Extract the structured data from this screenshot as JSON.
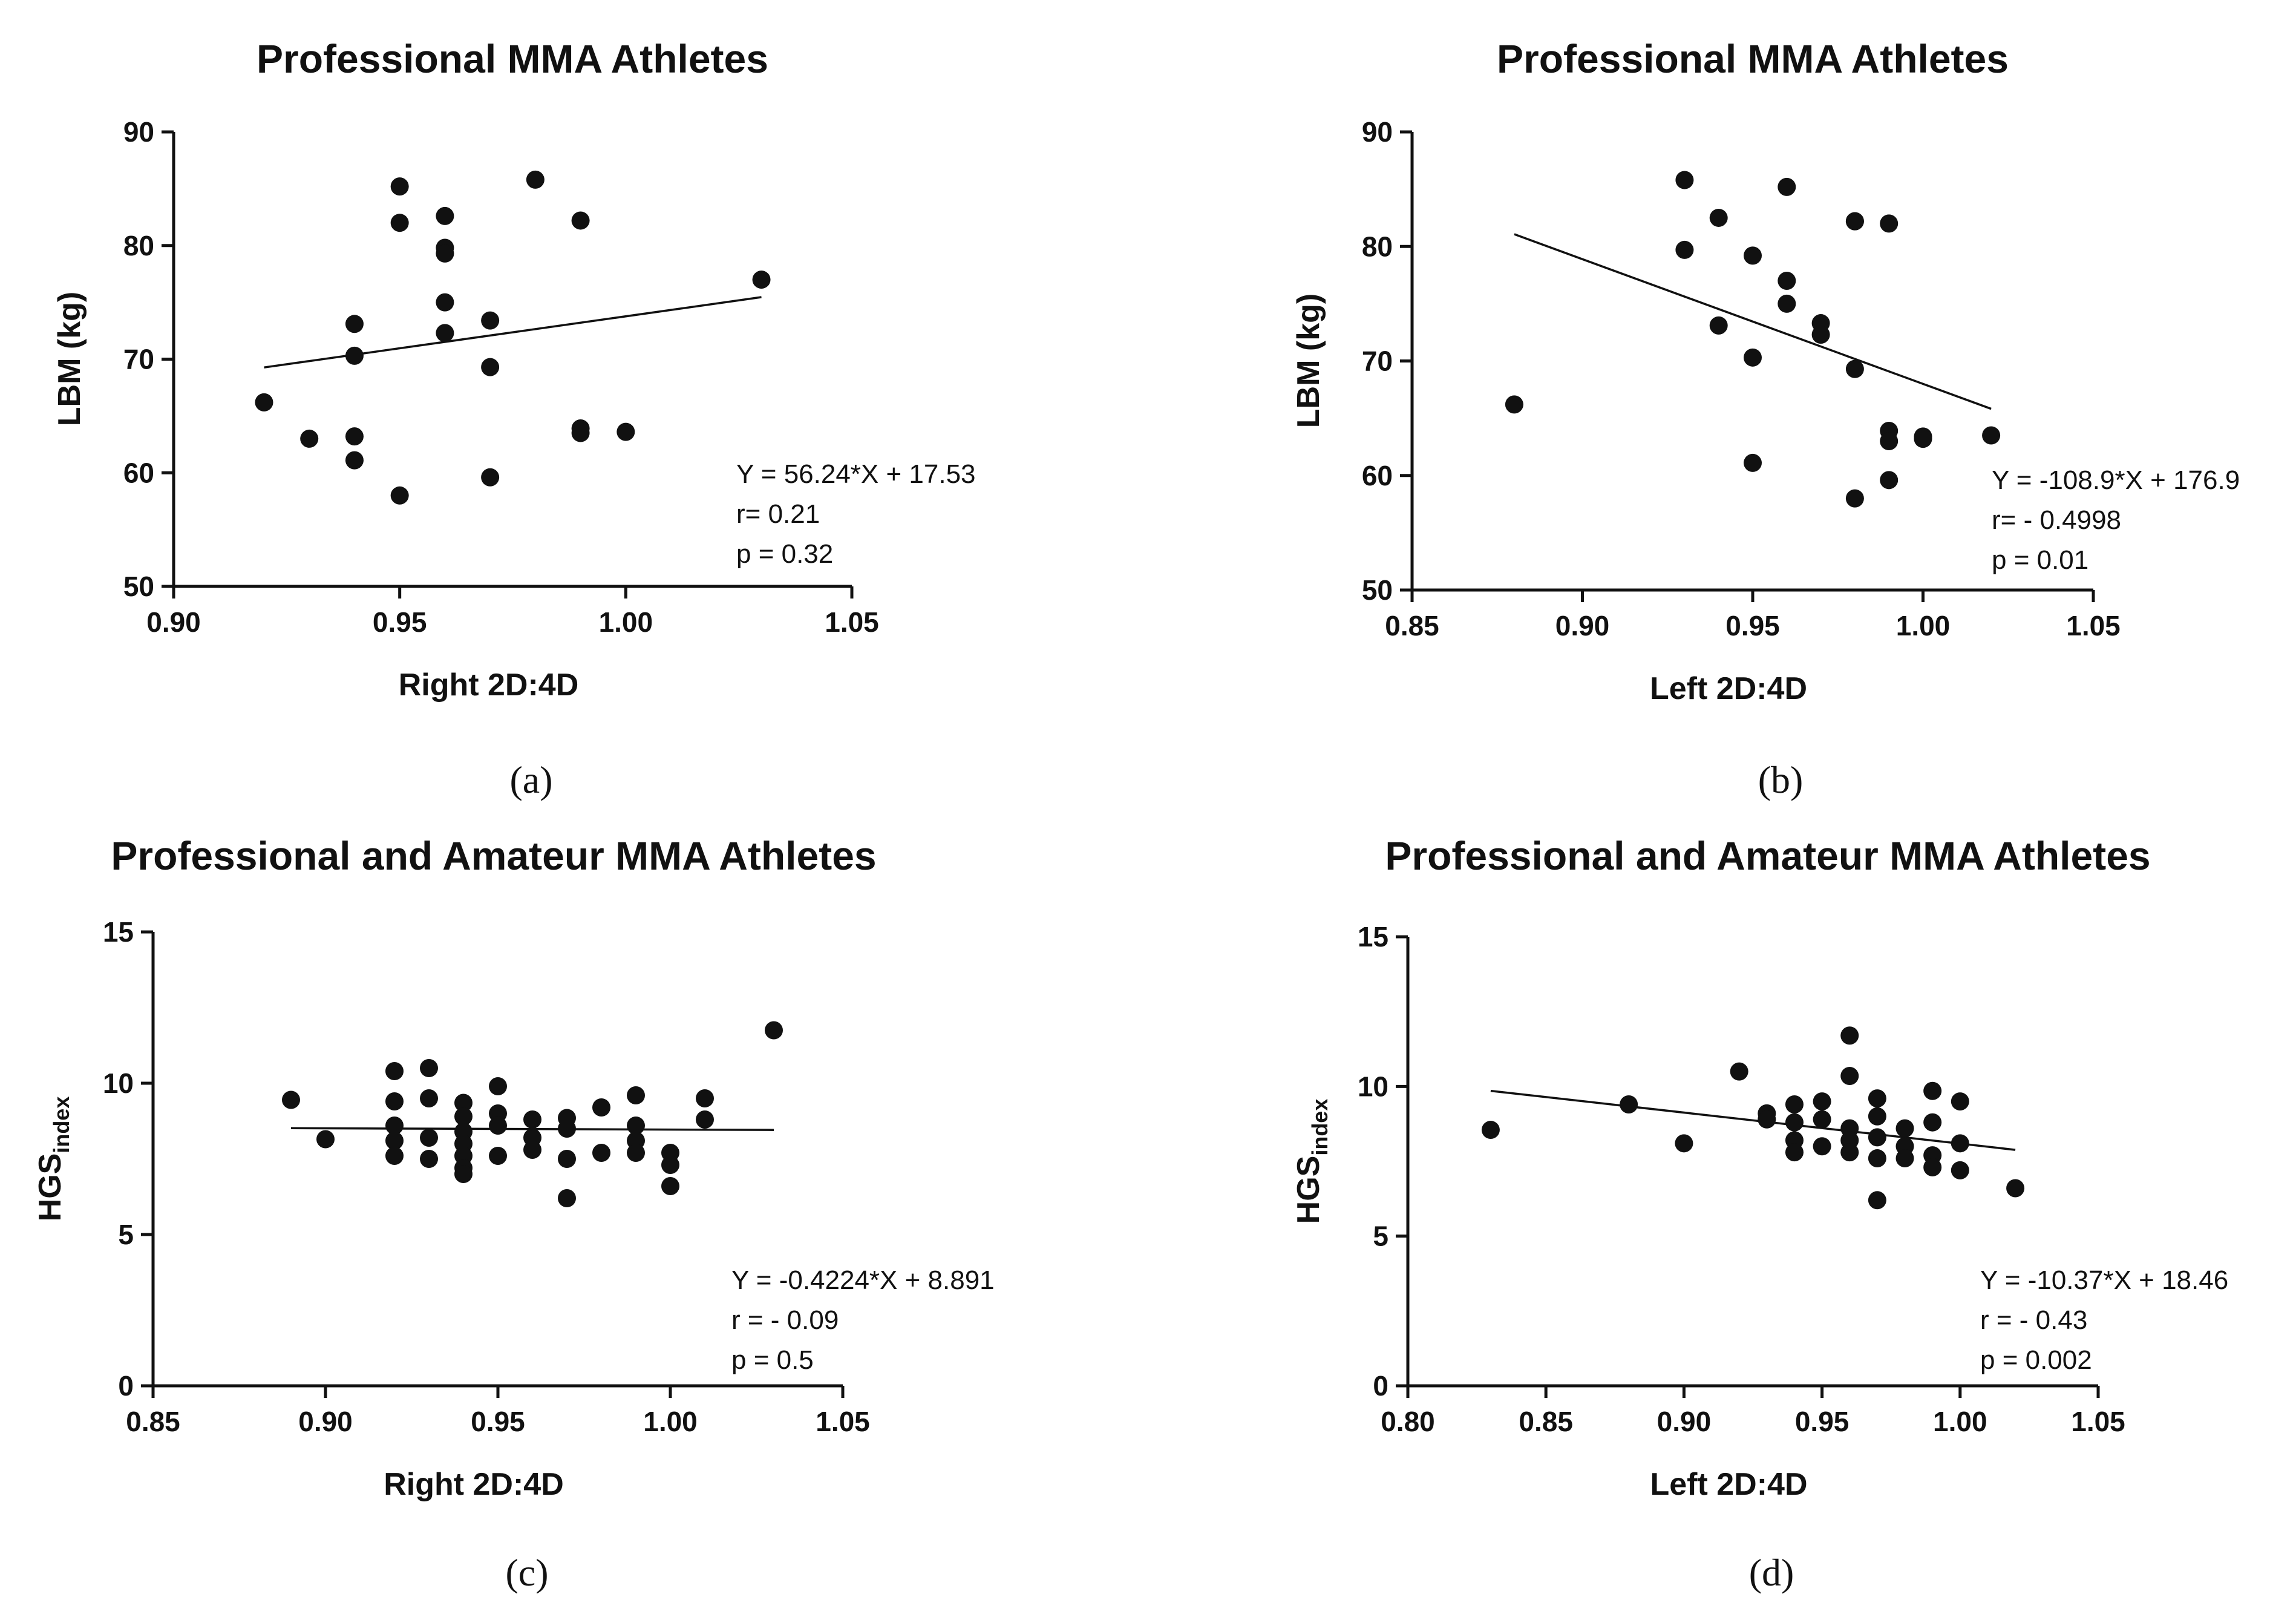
{
  "figure": {
    "panels": [
      {
        "caption": "(a)",
        "fit_text": "Y = 56.24*X + 17.53",
        "r_text": "r= 0.21",
        "p_text": "p = 0.32"
      },
      {
        "caption": "(b)",
        "fit_text": "Y = -108.9*X + 176.9",
        "r_text": "r= - 0.4998",
        "p_text": "p = 0.01"
      },
      {
        "caption": "(c)",
        "fit_text": "Y = -0.4224*X + 8.891",
        "r_text": "r = - 0.09",
        "p_text": "p = 0.5"
      },
      {
        "caption": "(d)",
        "fit_text": "Y = -10.37*X + 18.46",
        "r_text": "r = - 0.43",
        "p_text": "p = 0.002"
      }
    ]
  },
  "chart_data": [
    {
      "type": "scatter",
      "title": "Professional MMA Athletes",
      "xlabel": "Right 2D:4D",
      "ylabel": "LBM (kg)",
      "ylabel_sub": "",
      "xlim": [
        0.9,
        1.05
      ],
      "ylim": [
        50,
        90
      ],
      "xticks": [
        0.9,
        0.95,
        1.0,
        1.05
      ],
      "xtick_labels": [
        "0.90",
        "0.95",
        "1.00",
        "1.05"
      ],
      "yticks": [
        50,
        60,
        70,
        80,
        90
      ],
      "ytick_labels": [
        "50",
        "60",
        "70",
        "80",
        "90"
      ],
      "fit": {
        "slope": 56.24,
        "intercept": 17.53,
        "x_range": [
          0.92,
          1.03
        ]
      },
      "points": [
        [
          0.92,
          66.2
        ],
        [
          0.93,
          63.0
        ],
        [
          0.94,
          73.1
        ],
        [
          0.94,
          70.3
        ],
        [
          0.94,
          63.2
        ],
        [
          0.94,
          61.1
        ],
        [
          0.95,
          85.2
        ],
        [
          0.95,
          82.0
        ],
        [
          0.95,
          58.0
        ],
        [
          0.96,
          82.6
        ],
        [
          0.96,
          79.8
        ],
        [
          0.96,
          79.3
        ],
        [
          0.96,
          75.0
        ],
        [
          0.96,
          72.3
        ],
        [
          0.97,
          73.4
        ],
        [
          0.97,
          69.3
        ],
        [
          0.97,
          59.6
        ],
        [
          0.98,
          85.8
        ],
        [
          0.99,
          82.2
        ],
        [
          0.99,
          63.9
        ],
        [
          0.99,
          63.5
        ],
        [
          1.0,
          63.6
        ],
        [
          1.03,
          77.0
        ]
      ]
    },
    {
      "type": "scatter",
      "title": "Professional MMA Athletes",
      "xlabel": "Left 2D:4D",
      "ylabel": "LBM (kg)",
      "ylabel_sub": "",
      "xlim": [
        0.85,
        1.05
      ],
      "ylim": [
        50,
        90
      ],
      "xticks": [
        0.85,
        0.9,
        0.95,
        1.0,
        1.05
      ],
      "xtick_labels": [
        "0.85",
        "0.90",
        "0.95",
        "1.00",
        "1.05"
      ],
      "yticks": [
        50,
        60,
        70,
        80,
        90
      ],
      "ytick_labels": [
        "50",
        "60",
        "70",
        "80",
        "90"
      ],
      "fit": {
        "slope": -108.9,
        "intercept": 176.9,
        "x_range": [
          0.88,
          1.02
        ]
      },
      "points": [
        [
          0.88,
          66.2
        ],
        [
          0.93,
          85.8
        ],
        [
          0.93,
          79.7
        ],
        [
          0.94,
          82.5
        ],
        [
          0.94,
          73.1
        ],
        [
          0.95,
          79.2
        ],
        [
          0.95,
          70.3
        ],
        [
          0.95,
          61.1
        ],
        [
          0.96,
          85.2
        ],
        [
          0.96,
          77.0
        ],
        [
          0.96,
          75.0
        ],
        [
          0.97,
          73.3
        ],
        [
          0.97,
          72.3
        ],
        [
          0.98,
          82.2
        ],
        [
          0.98,
          82.2
        ],
        [
          0.98,
          69.3
        ],
        [
          0.98,
          58.0
        ],
        [
          0.99,
          82.0
        ],
        [
          0.99,
          63.9
        ],
        [
          0.99,
          63.0
        ],
        [
          0.99,
          59.6
        ],
        [
          1.0,
          63.4
        ],
        [
          1.0,
          63.2
        ],
        [
          1.02,
          63.5
        ]
      ]
    },
    {
      "type": "scatter",
      "title": "Professional and Amateur MMA Athletes",
      "xlabel": "Right 2D:4D",
      "ylabel": "HGS",
      "ylabel_sub": "index",
      "xlim": [
        0.85,
        1.05
      ],
      "ylim": [
        0,
        15
      ],
      "xticks": [
        0.85,
        0.9,
        0.95,
        1.0,
        1.05
      ],
      "xtick_labels": [
        "0.85",
        "0.90",
        "0.95",
        "1.00",
        "1.05"
      ],
      "yticks": [
        0,
        5,
        10,
        15
      ],
      "ytick_labels": [
        "0",
        "5",
        "10",
        "15"
      ],
      "fit": {
        "slope": -0.4224,
        "intercept": 8.891,
        "x_range": [
          0.89,
          1.03
        ]
      },
      "points": [
        [
          0.89,
          9.45
        ],
        [
          0.9,
          8.15
        ],
        [
          0.92,
          10.4
        ],
        [
          0.92,
          9.4
        ],
        [
          0.92,
          8.6
        ],
        [
          0.92,
          8.1
        ],
        [
          0.92,
          7.6
        ],
        [
          0.93,
          10.5
        ],
        [
          0.93,
          9.5
        ],
        [
          0.93,
          8.2
        ],
        [
          0.93,
          7.5
        ],
        [
          0.94,
          9.35
        ],
        [
          0.94,
          8.9
        ],
        [
          0.94,
          8.4
        ],
        [
          0.94,
          8.0
        ],
        [
          0.94,
          7.6
        ],
        [
          0.94,
          7.2
        ],
        [
          0.94,
          7.0
        ],
        [
          0.95,
          9.9
        ],
        [
          0.95,
          9.0
        ],
        [
          0.95,
          8.6
        ],
        [
          0.95,
          7.6
        ],
        [
          0.96,
          8.8
        ],
        [
          0.96,
          8.2
        ],
        [
          0.96,
          7.8
        ],
        [
          0.97,
          8.85
        ],
        [
          0.97,
          8.5
        ],
        [
          0.97,
          7.5
        ],
        [
          0.97,
          6.2
        ],
        [
          0.98,
          9.2
        ],
        [
          0.98,
          7.7
        ],
        [
          0.99,
          9.6
        ],
        [
          0.99,
          8.6
        ],
        [
          0.99,
          8.1
        ],
        [
          0.99,
          7.7
        ],
        [
          1.0,
          7.7
        ],
        [
          1.0,
          7.3
        ],
        [
          1.0,
          6.6
        ],
        [
          1.01,
          9.5
        ],
        [
          1.01,
          8.8
        ],
        [
          1.03,
          11.75
        ]
      ]
    },
    {
      "type": "scatter",
      "title": "Professional and Amateur MMA Athletes",
      "xlabel": "Left 2D:4D",
      "ylabel": "HGS",
      "ylabel_sub": "index",
      "xlim": [
        0.8,
        1.05
      ],
      "ylim": [
        0,
        15
      ],
      "xticks": [
        0.8,
        0.85,
        0.9,
        0.95,
        1.0,
        1.05
      ],
      "xtick_labels": [
        "0.80",
        "0.85",
        "0.90",
        "0.95",
        "1.00",
        "1.05"
      ],
      "yticks": [
        0,
        5,
        10,
        15
      ],
      "ytick_labels": [
        "0",
        "5",
        "10",
        "15"
      ],
      "fit": {
        "slope": -10.37,
        "intercept": 18.46,
        "x_range": [
          0.83,
          1.02
        ]
      },
      "points": [
        [
          0.83,
          8.55
        ],
        [
          0.88,
          9.4
        ],
        [
          0.9,
          8.1
        ],
        [
          0.92,
          10.5
        ],
        [
          0.93,
          9.1
        ],
        [
          0.93,
          8.9
        ],
        [
          0.94,
          9.4
        ],
        [
          0.94,
          8.8
        ],
        [
          0.94,
          8.2
        ],
        [
          0.94,
          7.8
        ],
        [
          0.95,
          9.5
        ],
        [
          0.95,
          8.9
        ],
        [
          0.95,
          8.0
        ],
        [
          0.96,
          11.7
        ],
        [
          0.96,
          10.35
        ],
        [
          0.96,
          8.6
        ],
        [
          0.96,
          8.2
        ],
        [
          0.96,
          7.8
        ],
        [
          0.97,
          9.6
        ],
        [
          0.97,
          9.0
        ],
        [
          0.97,
          8.3
        ],
        [
          0.97,
          7.6
        ],
        [
          0.97,
          6.2
        ],
        [
          0.98,
          8.6
        ],
        [
          0.98,
          8.0
        ],
        [
          0.98,
          7.6
        ],
        [
          0.99,
          9.85
        ],
        [
          0.99,
          8.8
        ],
        [
          0.99,
          7.7
        ],
        [
          0.99,
          7.3
        ],
        [
          1.0,
          9.5
        ],
        [
          1.0,
          8.1
        ],
        [
          1.0,
          7.2
        ],
        [
          1.02,
          6.6
        ]
      ]
    }
  ]
}
